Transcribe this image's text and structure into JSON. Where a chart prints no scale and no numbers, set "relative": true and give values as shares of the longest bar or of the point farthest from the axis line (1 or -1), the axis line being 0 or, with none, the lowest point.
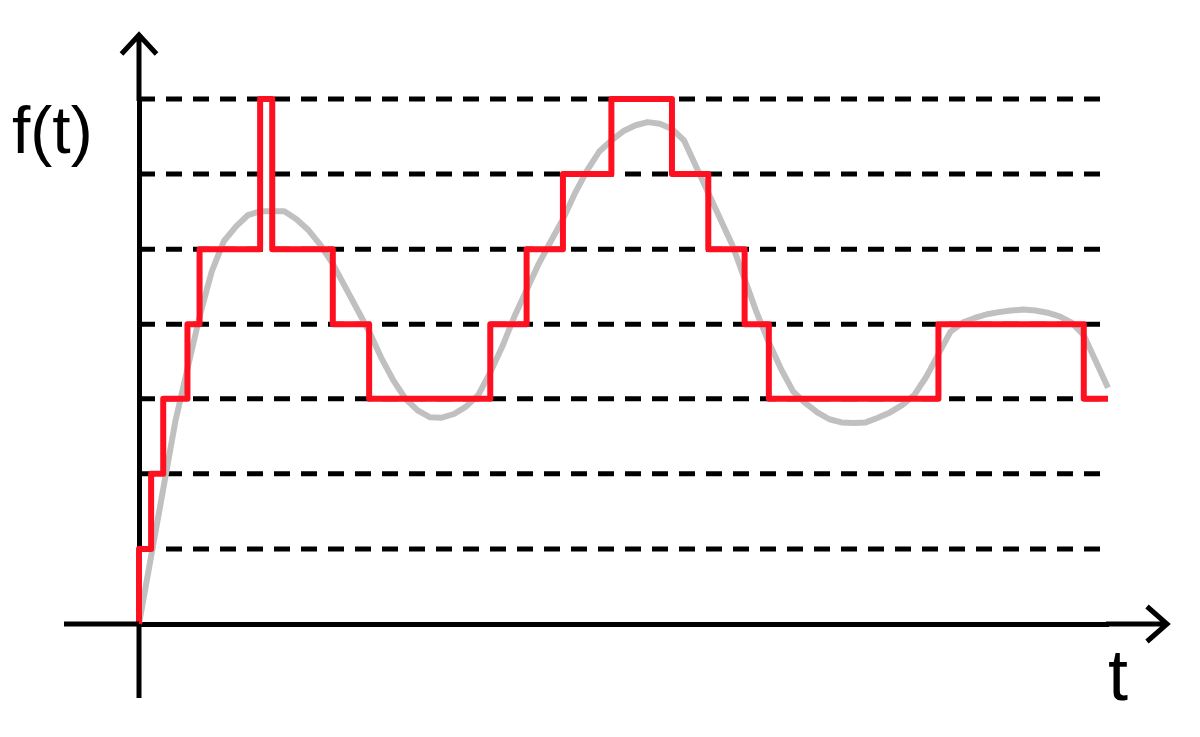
{
  "chart_data": {
    "type": "line",
    "xlabel": "t",
    "ylabel": "f(t)",
    "relative": true,
    "legend": false,
    "marker": "none",
    "categories": [
      null,
      null,
      null,
      null,
      null,
      null,
      null,
      null,
      null,
      null,
      null,
      null,
      null,
      null,
      null,
      null,
      null,
      null,
      null,
      null,
      null,
      null,
      null,
      null,
      null,
      null,
      null,
      null,
      null,
      null,
      null,
      null,
      null,
      null,
      null,
      null,
      null,
      null,
      null,
      null,
      null,
      null,
      null,
      null,
      null,
      null,
      null,
      null,
      null,
      null,
      null,
      null,
      null,
      null,
      null,
      null,
      null,
      null,
      null,
      null,
      null,
      null,
      null,
      null,
      null,
      null,
      null,
      null,
      null,
      null,
      null,
      null,
      null,
      null,
      null,
      null,
      null,
      null,
      null,
      null,
      null
    ],
    "series": [
      {
        "type": "line",
        "color": "#c0c0c0",
        "values": [
          0,
          0.129,
          0.257,
          0.386,
          0.486,
          0.586,
          0.671,
          0.729,
          0.757,
          0.779,
          0.786,
          0.786,
          0.786,
          0.771,
          0.75,
          0.721,
          0.686,
          0.643,
          0.6,
          0.557,
          0.507,
          0.464,
          0.429,
          0.407,
          0.394,
          0.393,
          0.4,
          0.414,
          0.436,
          0.479,
          0.529,
          0.586,
          0.636,
          0.686,
          0.729,
          0.771,
          0.821,
          0.864,
          0.9,
          0.921,
          0.939,
          0.95,
          0.956,
          0.953,
          0.943,
          0.921,
          0.871,
          0.821,
          0.771,
          0.721,
          0.657,
          0.593,
          0.536,
          0.486,
          0.443,
          0.421,
          0.403,
          0.39,
          0.384,
          0.383,
          0.384,
          0.393,
          0.403,
          0.417,
          0.436,
          0.471,
          0.514,
          0.557,
          0.574,
          0.583,
          0.59,
          0.594,
          0.597,
          0.599,
          0.597,
          0.593,
          0.586,
          0.574,
          0.55,
          0.5,
          0.45
        ]
      },
      {
        "type": "step",
        "color": "#ff1020",
        "values": [
          0,
          0.143,
          0.286,
          0.429,
          0.429,
          0.571,
          0.714,
          0.714,
          0.714,
          0.714,
          0.714,
          1,
          0.714,
          0.714,
          0.714,
          0.714,
          0.714,
          0.571,
          0.571,
          0.571,
          0.429,
          0.429,
          0.429,
          0.429,
          0.429,
          0.429,
          0.429,
          0.429,
          0.429,
          0.429,
          0.571,
          0.571,
          0.571,
          0.714,
          0.714,
          0.714,
          0.857,
          0.857,
          0.857,
          0.857,
          1,
          1,
          1,
          1,
          1,
          0.857,
          0.857,
          0.857,
          0.714,
          0.714,
          0.714,
          0.571,
          0.571,
          0.429,
          0.429,
          0.429,
          0.429,
          0.429,
          0.429,
          0.429,
          0.429,
          0.429,
          0.429,
          0.429,
          0.429,
          0.429,
          0.429,
          0.571,
          0.571,
          0.571,
          0.571,
          0.571,
          0.571,
          0.571,
          0.571,
          0.571,
          0.571,
          0.571,
          0.571,
          0.429,
          0.429
        ]
      }
    ],
    "ref_lines": [
      {
        "axis": "y",
        "value": 0.143,
        "color": "#000000",
        "line_style": "dashed"
      },
      {
        "axis": "y",
        "value": 0.286,
        "color": "#000000",
        "line_style": "dashed"
      },
      {
        "axis": "y",
        "value": 0.429,
        "color": "#000000",
        "line_style": "dashed"
      },
      {
        "axis": "y",
        "value": 0.571,
        "color": "#000000",
        "line_style": "dashed"
      },
      {
        "axis": "y",
        "value": 0.714,
        "color": "#000000",
        "line_style": "dashed"
      },
      {
        "axis": "y",
        "value": 0.857,
        "color": "#000000",
        "line_style": "dashed"
      },
      {
        "axis": "y",
        "value": 1,
        "color": "#000000",
        "line_style": "dashed"
      }
    ]
  }
}
